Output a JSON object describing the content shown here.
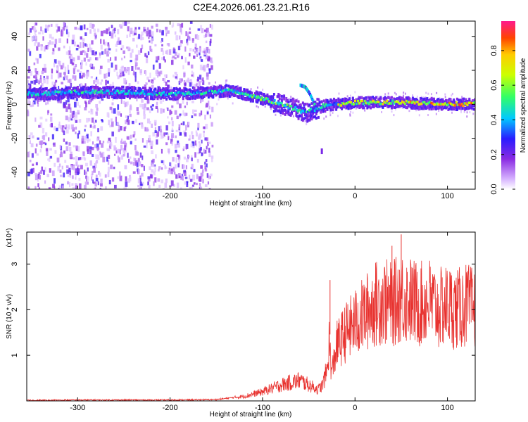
{
  "figure": {
    "title": "C2E4.2026.061.23.21.R16"
  },
  "chart_data": [
    {
      "type": "heatmap",
      "xlabel": "Height of straight line (km)",
      "ylabel": "Frequency (Hz)",
      "xlim": [
        -355,
        130
      ],
      "ylim": [
        -50,
        49
      ],
      "xticks": [
        -300,
        -200,
        -100,
        0,
        100
      ],
      "yticks": [
        -40,
        -20,
        0,
        20,
        40
      ],
      "colorbar": {
        "label": "Normalized spectral amplitude",
        "range": [
          0,
          0.97
        ],
        "ticks": [
          0.0,
          0.2,
          0.4,
          0.6,
          0.8
        ]
      },
      "noise_region_x": [
        -355,
        -155
      ],
      "signal_ridge": {
        "x": [
          -340,
          -300,
          -250,
          -200,
          -160,
          -140,
          -120,
          -100,
          -80,
          -65,
          -55,
          -45,
          -35,
          -20,
          0,
          50,
          100,
          130
        ],
        "y": [
          6,
          7,
          7,
          6,
          7,
          8,
          6,
          3,
          0,
          -3,
          -5,
          -3,
          -1,
          0,
          1,
          1,
          0,
          0
        ]
      },
      "secondary_branch": {
        "x": [
          -60,
          -55,
          -50,
          -45,
          -42
        ],
        "y": [
          11,
          10,
          6,
          0,
          -5
        ]
      },
      "grid": false
    },
    {
      "type": "line",
      "xlabel": "Height of straight line (km)",
      "ylabel": "SNR (10 * v/v)",
      "yscale_label": "(x10⁴)",
      "xlim": [
        -355,
        130
      ],
      "ylim": [
        0,
        3.7
      ],
      "xticks": [
        -300,
        -200,
        -100,
        0,
        100
      ],
      "yticks": [
        1,
        2,
        3
      ],
      "color": "#e8322f",
      "series": [
        {
          "x": [
            -355,
            -300,
            -250,
            -200,
            -150,
            -120,
            -100,
            -80,
            -60,
            -45,
            -40,
            -35,
            -30,
            -28,
            -25,
            -20,
            -10,
            0,
            10,
            20,
            30,
            40,
            50,
            60,
            70,
            80,
            90,
            100,
            110,
            120,
            130
          ],
          "y": [
            0.01,
            0.02,
            0.02,
            0.02,
            0.03,
            0.1,
            0.2,
            0.35,
            0.45,
            0.3,
            0.25,
            0.35,
            0.7,
            1.3,
            0.6,
            1.2,
            1.5,
            1.7,
            1.9,
            2.1,
            2.2,
            2.1,
            2.3,
            2.2,
            2.1,
            2.2,
            2.0,
            2.1,
            2.0,
            2.1,
            2.0
          ],
          "peaks": [
            {
              "x": -27,
              "y": 2.65
            },
            {
              "x": 40,
              "y": 3.4
            },
            {
              "x": 50,
              "y": 3.65
            }
          ]
        }
      ],
      "grid": false
    }
  ]
}
